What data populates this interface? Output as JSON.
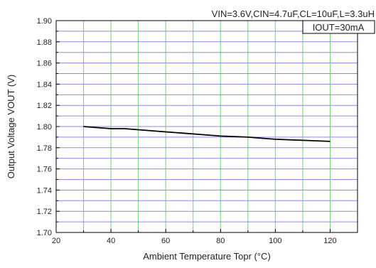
{
  "chart_data": {
    "type": "line",
    "title": "",
    "xlabel": "Ambient Temperature Topr (°C)",
    "ylabel": "Output Voltage VOUT (V)",
    "xlim": [
      20,
      130
    ],
    "ylim": [
      1.7,
      1.9
    ],
    "x_ticks": [
      "20",
      "40",
      "60",
      "80",
      "100",
      "120"
    ],
    "y_ticks": [
      "1.70",
      "1.72",
      "1.74",
      "1.76",
      "1.78",
      "1.80",
      "1.82",
      "1.84",
      "1.86",
      "1.88",
      "1.90"
    ],
    "grid": true,
    "annotations": {
      "conditions": "VIN=3.6V,CIN=4.7uF,CL=10uF,L=3.3uH",
      "iout": "IOUT=30mA"
    },
    "series": [
      {
        "color": "#000000",
        "x": [
          30,
          35,
          40,
          45,
          50,
          60,
          70,
          80,
          90,
          100,
          110,
          120
        ],
        "y": [
          1.8,
          1.799,
          1.798,
          1.798,
          1.797,
          1.795,
          1.793,
          1.791,
          1.79,
          1.788,
          1.787,
          1.786
        ]
      }
    ]
  },
  "colors": {
    "vertical_grid": "#6fd46f",
    "horizontal_grid": "#8a8ae6",
    "line": "#000000"
  }
}
